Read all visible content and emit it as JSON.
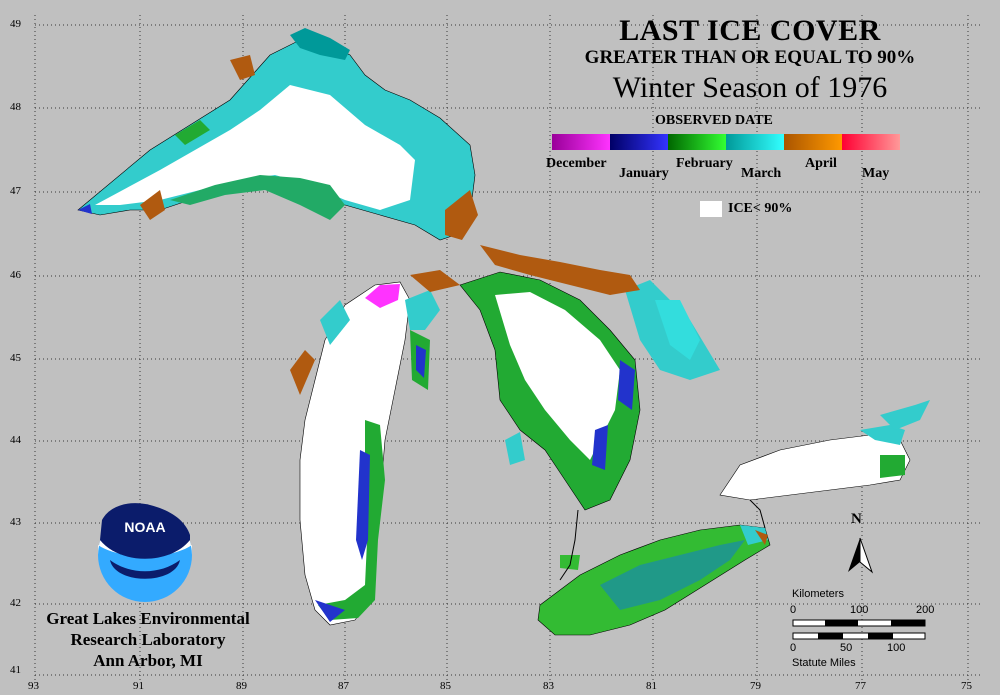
{
  "title": {
    "line1": "LAST ICE COVER",
    "line2": "GREATER THAN OR EQUAL TO 90%",
    "line3": "Winter Season of 1976"
  },
  "legend": {
    "heading": "OBSERVED DATE",
    "months": [
      "December",
      "January",
      "February",
      "March",
      "April",
      "May"
    ],
    "gradient_colors": [
      [
        "#990099",
        "#ff33ff"
      ],
      [
        "#000066",
        "#3333ff"
      ],
      [
        "#006600",
        "#33ff33"
      ],
      [
        "#009999",
        "#33ffff"
      ],
      [
        "#aa5500",
        "#ff9900"
      ],
      [
        "#ff0033",
        "#ff9999"
      ]
    ],
    "ice_label": "ICE< 90%",
    "ice_color": "#ffffff"
  },
  "axes": {
    "lat_labels": [
      "49",
      "48",
      "47",
      "46",
      "45",
      "44",
      "43",
      "42",
      "41"
    ],
    "lon_labels": [
      "93",
      "91",
      "89",
      "87",
      "85",
      "83",
      "81",
      "79",
      "77",
      "75"
    ]
  },
  "credit": {
    "line1": "Great Lakes Environmental",
    "line2": "Research Laboratory",
    "line3": "Ann Arbor, MI",
    "logo_text": "NOAA"
  },
  "scale": {
    "km_label": "Kilometers",
    "km_ticks": [
      "0",
      "100",
      "200"
    ],
    "mi_label": "Statute Miles",
    "mi_ticks": [
      "0",
      "50",
      "100"
    ]
  },
  "north_label": "N",
  "colors": {
    "background": "#c0c0c0",
    "ice_low": "#ffffff",
    "lake_outline": "#000000"
  }
}
